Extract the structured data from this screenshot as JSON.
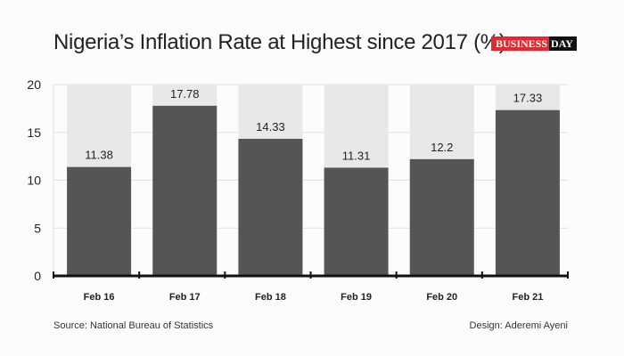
{
  "title": "Nigeria’s Inflation Rate at Highest since 2017 (%)",
  "logo": {
    "part1": "BUSINESS",
    "part2": "DAY"
  },
  "source": "Source: National Bureau of Statistics",
  "design": "Design: Aderemi Ayeni",
  "colors": {
    "bar": "#555557",
    "bar_background": "#e8e8e8",
    "grid": "#e0e0e0",
    "logo_red": "#e8262b"
  },
  "chart_data": {
    "type": "bar",
    "categories": [
      "Feb 16",
      "Feb 17",
      "Feb 18",
      "Feb 19",
      "Feb 20",
      "Feb 21"
    ],
    "values": [
      11.38,
      17.78,
      14.33,
      11.31,
      12.2,
      17.33
    ],
    "data_labels": [
      "11.38",
      "17.78",
      "14.33",
      "11.31",
      "12.2",
      "17.33"
    ],
    "title": "Nigeria’s Inflation Rate at Highest since 2017 (%)",
    "xlabel": "",
    "ylabel": "",
    "ylim": [
      0,
      20
    ],
    "yticks": [
      0,
      5,
      10,
      15,
      20
    ],
    "grid": true,
    "legend": "none"
  }
}
